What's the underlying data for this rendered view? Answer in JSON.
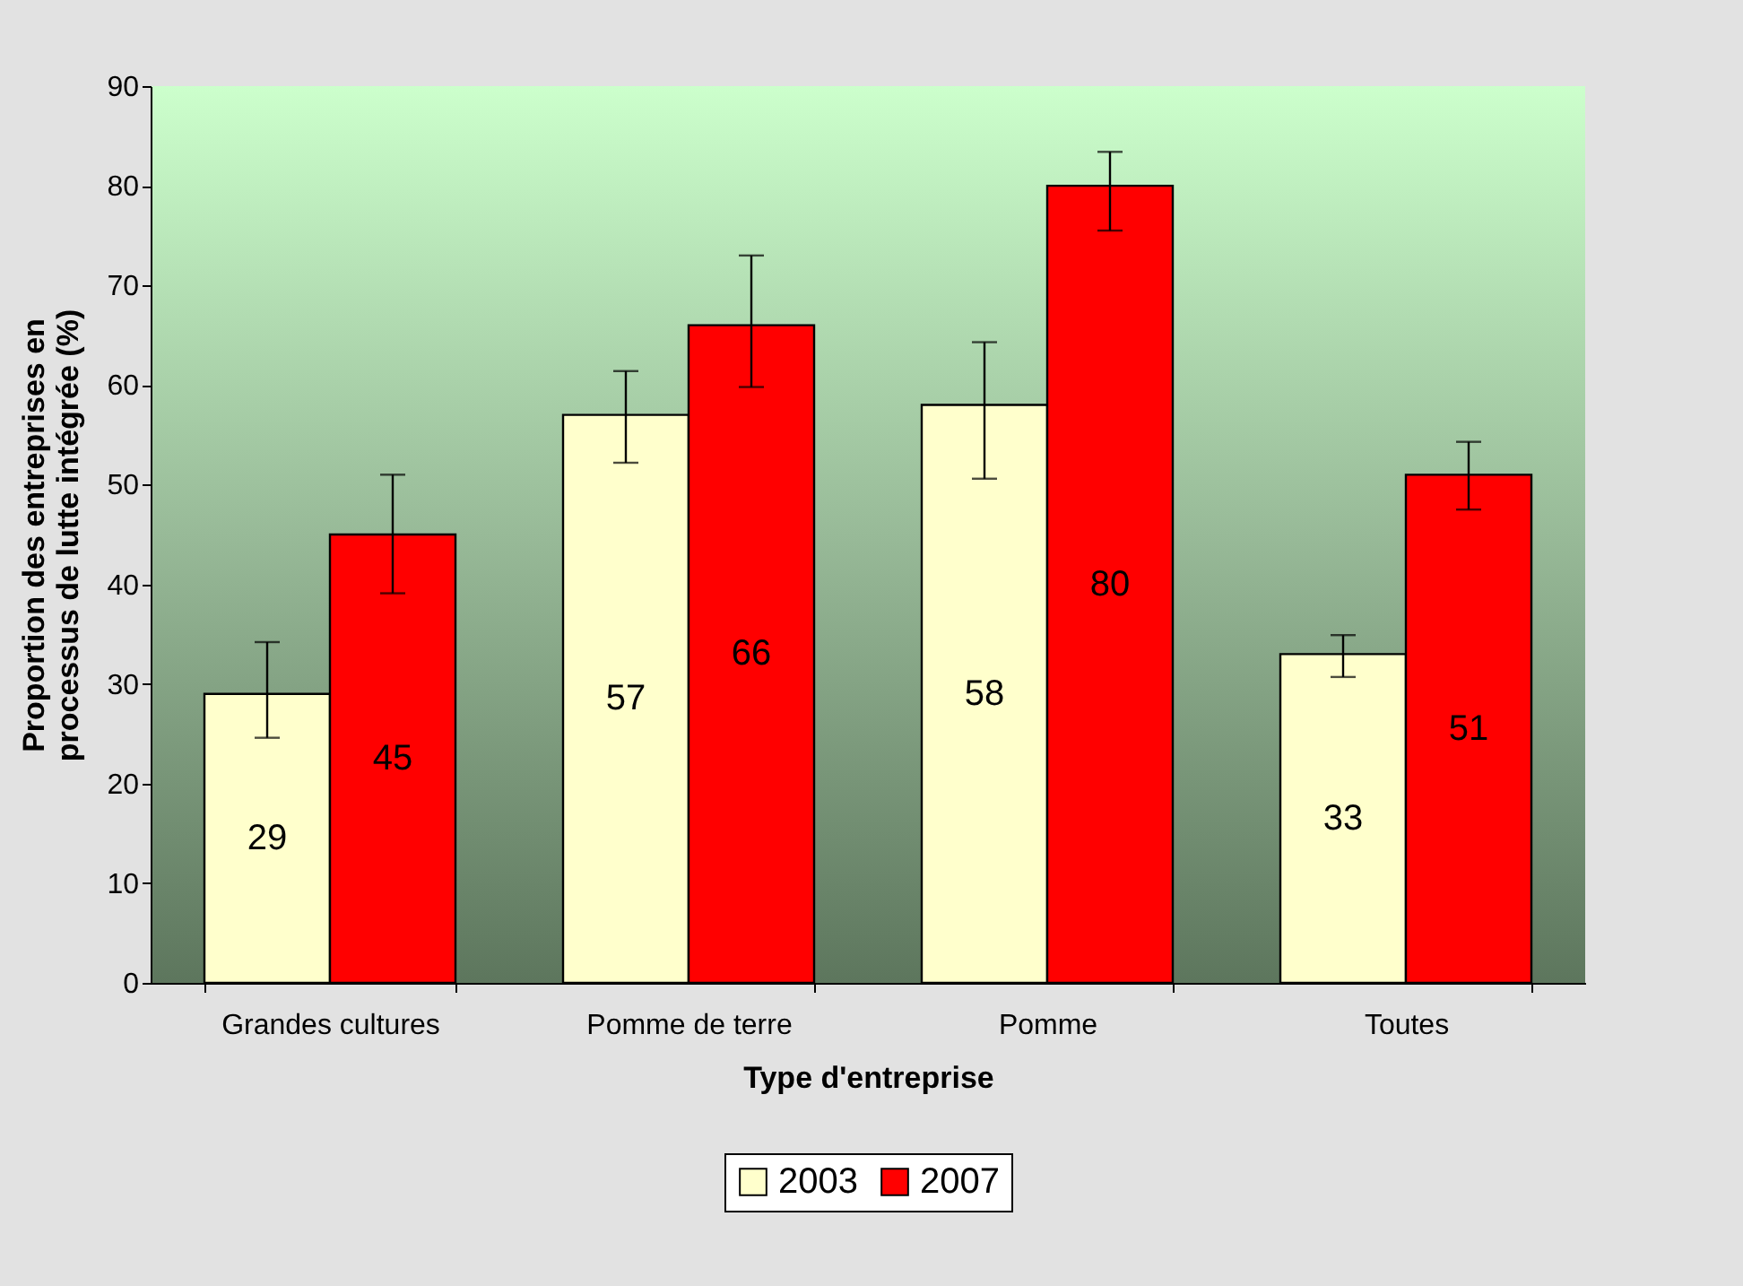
{
  "chart_data": {
    "type": "bar",
    "xlabel": "Type d'entreprise",
    "ylabel": "Proportion des entreprises en processus de lutte intégrée (%)",
    "categories": [
      "Grandes cultures",
      "Pomme de terre",
      "Pomme",
      "Toutes"
    ],
    "series": [
      {
        "name": "2003",
        "color": "#ffffcc",
        "values": [
          29,
          57,
          58,
          33
        ],
        "errors": [
          [
            24.6,
            34.2
          ],
          [
            52.2,
            61.4
          ],
          [
            50.6,
            64.3
          ],
          [
            30.7,
            34.9
          ]
        ]
      },
      {
        "name": "2007",
        "color": "#ff0000",
        "values": [
          45,
          66,
          80,
          51
        ],
        "errors": [
          [
            39.1,
            51.0
          ],
          [
            59.8,
            73.0
          ],
          [
            75.5,
            83.4
          ],
          [
            47.5,
            54.3
          ]
        ]
      }
    ],
    "ylim": [
      0,
      90
    ],
    "yticks": [
      0,
      10,
      20,
      30,
      40,
      50,
      60,
      70,
      80,
      90
    ],
    "data_labels": true,
    "legend": "bottom",
    "grid": false
  }
}
